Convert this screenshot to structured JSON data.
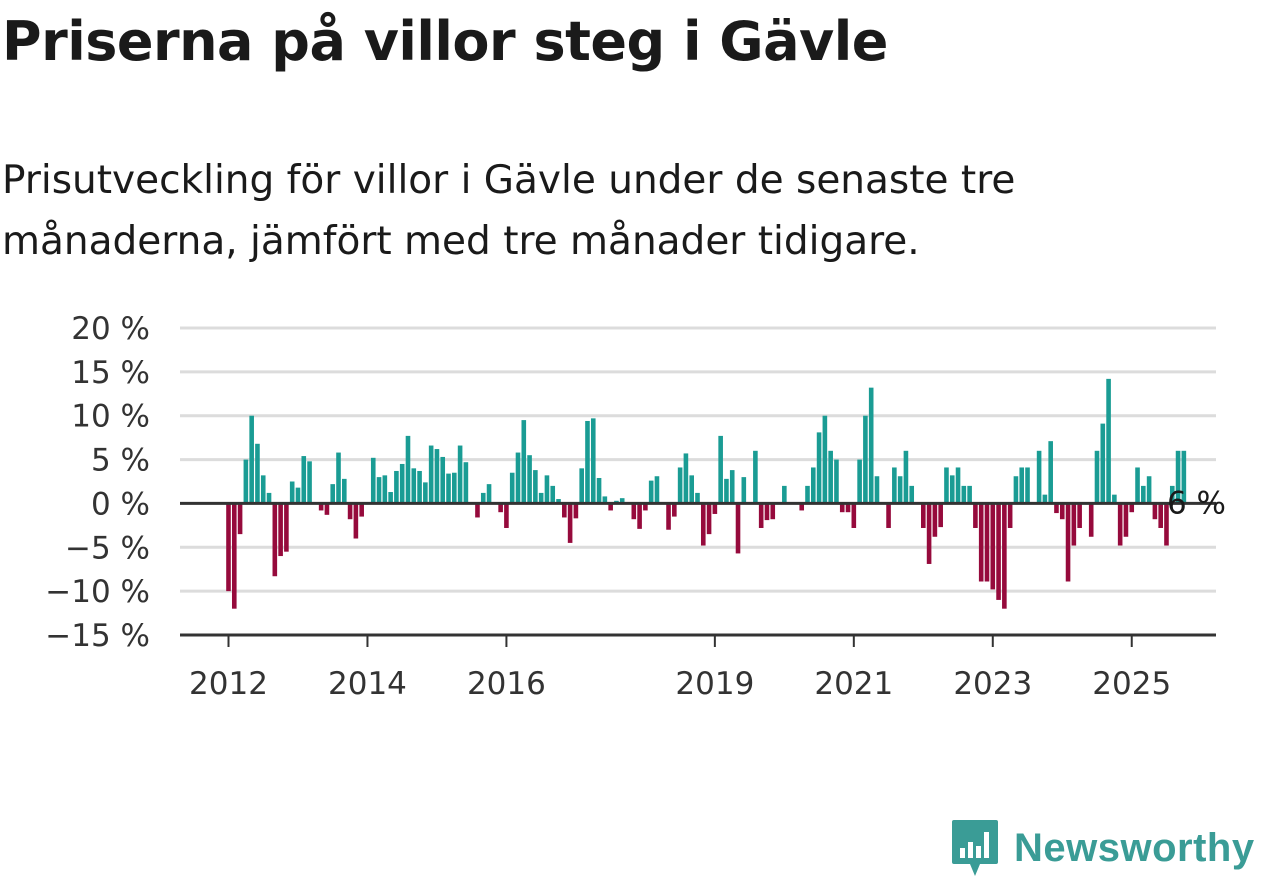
{
  "header": {
    "title": "Priserna på villor steg i Gävle",
    "subtitle": "Prisutveckling för villor i Gävle under de senaste tre månaderna, jämfört med tre månader tidigare."
  },
  "brand": {
    "name": "Newsworthy"
  },
  "colors": {
    "positive": "#1a9c94",
    "negative": "#960a3c",
    "grid": "#dcdcdc",
    "axis": "#333333",
    "text": "#333333",
    "brand": "#3a9c96"
  },
  "chart_data": {
    "type": "bar",
    "xlabel": "",
    "ylabel": "",
    "ylim": [
      -15,
      20
    ],
    "y_ticks": [
      20,
      15,
      10,
      5,
      0,
      -5,
      -10,
      -15
    ],
    "y_tick_labels": [
      "20 %",
      "15 %",
      "10 %",
      "5 %",
      "0 %",
      "−5 %",
      "−10 %",
      "−15 %"
    ],
    "x_tick_labels": [
      {
        "label": "2012",
        "index": 0
      },
      {
        "label": "2014",
        "index": 24
      },
      {
        "label": "2016",
        "index": 48
      },
      {
        "label": "2019",
        "index": 84
      },
      {
        "label": "2021",
        "index": 108
      },
      {
        "label": "2023",
        "index": 132
      },
      {
        "label": "2025",
        "index": 156
      }
    ],
    "annotation": {
      "text": "6 %",
      "index": 162
    },
    "start": "2012-01",
    "grid": true,
    "values": [
      -10,
      -12,
      -3.5,
      5,
      10,
      6.8,
      3.2,
      1.2,
      -8.3,
      -6,
      -5.5,
      2.5,
      1.8,
      5.4,
      4.8,
      0,
      -0.8,
      -1.3,
      2.2,
      5.8,
      2.8,
      -1.8,
      -4,
      -1.5,
      0,
      5.2,
      3,
      3.2,
      1.3,
      3.7,
      4.5,
      7.7,
      4,
      3.7,
      2.4,
      6.6,
      6.2,
      5.3,
      3.4,
      3.5,
      6.6,
      4.7,
      0,
      -1.6,
      1.2,
      2.2,
      0,
      -1,
      -2.8,
      3.5,
      5.8,
      9.5,
      5.5,
      3.8,
      1.2,
      3.2,
      2,
      0.5,
      -1.6,
      -4.5,
      -1.7,
      4,
      9.4,
      9.7,
      2.9,
      0.8,
      -0.8,
      0.3,
      0.6,
      0,
      -1.8,
      -2.9,
      -0.8,
      2.6,
      3.1,
      0,
      -3,
      -1.5,
      4.1,
      5.7,
      3.2,
      1.2,
      -4.8,
      -3.5,
      -1.2,
      7.7,
      2.8,
      3.8,
      -5.7,
      3,
      0,
      6,
      -2.8,
      -1.9,
      -1.8,
      0,
      2,
      0,
      0,
      -0.8,
      2,
      4.1,
      8.1,
      10,
      6,
      5,
      -1,
      -1,
      -2.8,
      5,
      10,
      13.2,
      3.1,
      0,
      -2.8,
      4.1,
      3.1,
      6,
      2,
      0,
      -2.8,
      -6.9,
      -3.8,
      -2.7,
      4.1,
      3.2,
      4.1,
      2,
      2,
      -2.8,
      -8.9,
      -8.9,
      -9.8,
      -11,
      -12,
      -2.8,
      3.1,
      4.1,
      4.1,
      0,
      6,
      1,
      7.1,
      -1.1,
      -1.8,
      -8.9,
      -4.8,
      -2.8,
      0,
      -3.8,
      6,
      9.1,
      14.2,
      1,
      -4.8,
      -3.8,
      -1,
      4.1,
      2,
      3.1,
      -1.8,
      -2.8,
      -4.8,
      2,
      6,
      6
    ]
  }
}
